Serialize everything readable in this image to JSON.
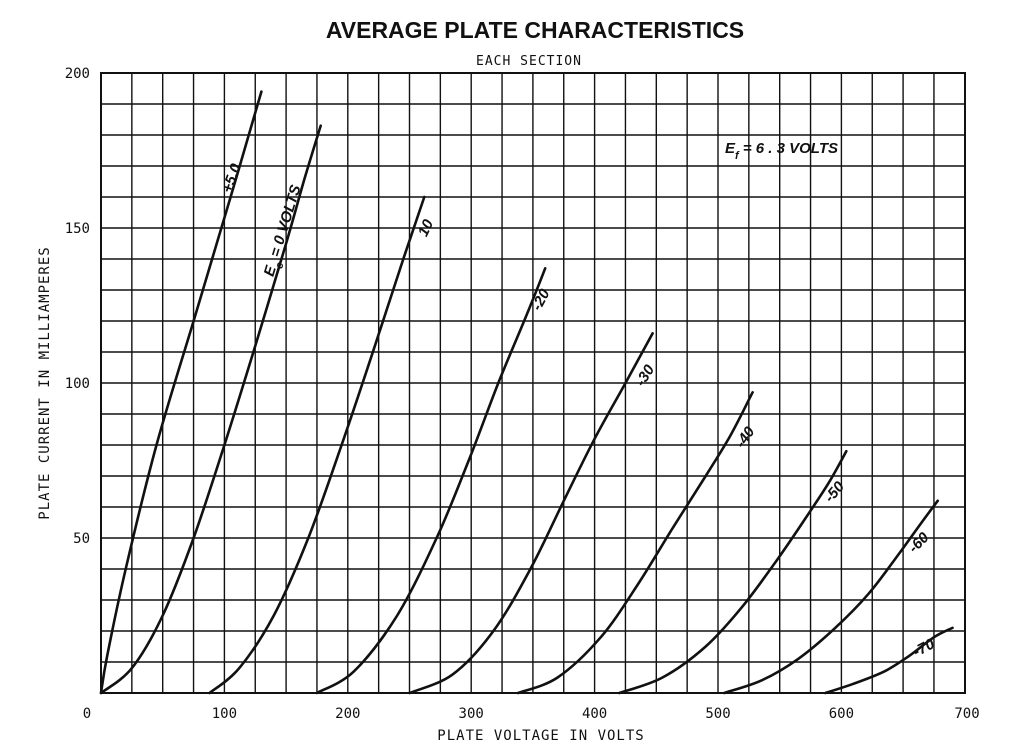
{
  "chart_data": {
    "type": "line",
    "title": "AVERAGE PLATE CHARACTERISTICS",
    "subtitle": "EACH SECTION",
    "xlabel": "PLATE VOLTAGE IN VOLTS",
    "ylabel": "PLATE CURRENT IN MILLIAMPERES",
    "xlim": [
      0,
      700
    ],
    "ylim": [
      0,
      200
    ],
    "x_ticks": [
      0,
      100,
      200,
      300,
      400,
      500,
      600,
      700
    ],
    "x_tick_labels": [
      "0",
      "100",
      "200",
      "300",
      "400",
      "500",
      "600",
      "700"
    ],
    "y_ticks": [
      50,
      100,
      150,
      200
    ],
    "y_tick_labels": [
      "50",
      "100",
      "150",
      "200"
    ],
    "grid": true,
    "annotation": "E_f = 6.3 VOLTS",
    "annotation_parts": {
      "e": "E",
      "sub": "f",
      "rest": " = 6 . 3  VOLTS"
    },
    "series": [
      {
        "label": "+5.0",
        "points": [
          [
            0,
            0
          ],
          [
            5,
            12
          ],
          [
            20,
            40
          ],
          [
            45,
            80
          ],
          [
            75,
            120
          ],
          [
            105,
            160
          ],
          [
            130,
            194
          ]
        ]
      },
      {
        "label": "E_c = 0 VOLTS",
        "label_parts": {
          "e": "E",
          "sub": "c",
          "rest": " = 0  VOLTS"
        },
        "points": [
          [
            0,
            0
          ],
          [
            25,
            8
          ],
          [
            50,
            25
          ],
          [
            75,
            50
          ],
          [
            100,
            80
          ],
          [
            125,
            112
          ],
          [
            150,
            145
          ],
          [
            165,
            166
          ],
          [
            178,
            183
          ]
        ]
      },
      {
        "label": "10",
        "points": [
          [
            88,
            0
          ],
          [
            112,
            8
          ],
          [
            140,
            25
          ],
          [
            168,
            50
          ],
          [
            195,
            80
          ],
          [
            222,
            112
          ],
          [
            245,
            140
          ],
          [
            262,
            160
          ]
        ]
      },
      {
        "label": "-20",
        "points": [
          [
            175,
            0
          ],
          [
            205,
            7
          ],
          [
            240,
            25
          ],
          [
            272,
            50
          ],
          [
            298,
            75
          ],
          [
            322,
            100
          ],
          [
            345,
            122
          ],
          [
            360,
            137
          ]
        ]
      },
      {
        "label": "-30",
        "points": [
          [
            250,
            0
          ],
          [
            285,
            6
          ],
          [
            318,
            20
          ],
          [
            348,
            40
          ],
          [
            375,
            62
          ],
          [
            400,
            82
          ],
          [
            425,
            100
          ],
          [
            447,
            116
          ]
        ]
      },
      {
        "label": "-40",
        "points": [
          [
            338,
            0
          ],
          [
            370,
            5
          ],
          [
            405,
            18
          ],
          [
            435,
            35
          ],
          [
            463,
            53
          ],
          [
            490,
            70
          ],
          [
            510,
            83
          ],
          [
            528,
            97
          ]
        ]
      },
      {
        "label": "-50",
        "points": [
          [
            420,
            0
          ],
          [
            455,
            5
          ],
          [
            490,
            15
          ],
          [
            520,
            28
          ],
          [
            548,
            43
          ],
          [
            572,
            57
          ],
          [
            590,
            68
          ],
          [
            604,
            78
          ]
        ]
      },
      {
        "label": "-60",
        "points": [
          [
            505,
            0
          ],
          [
            535,
            4
          ],
          [
            565,
            11
          ],
          [
            595,
            21
          ],
          [
            622,
            32
          ],
          [
            645,
            44
          ],
          [
            665,
            55
          ],
          [
            678,
            62
          ]
        ]
      },
      {
        "label": "-70",
        "points": [
          [
            587,
            0
          ],
          [
            610,
            3
          ],
          [
            635,
            7
          ],
          [
            655,
            12
          ],
          [
            675,
            18
          ],
          [
            690,
            21
          ]
        ]
      }
    ]
  }
}
